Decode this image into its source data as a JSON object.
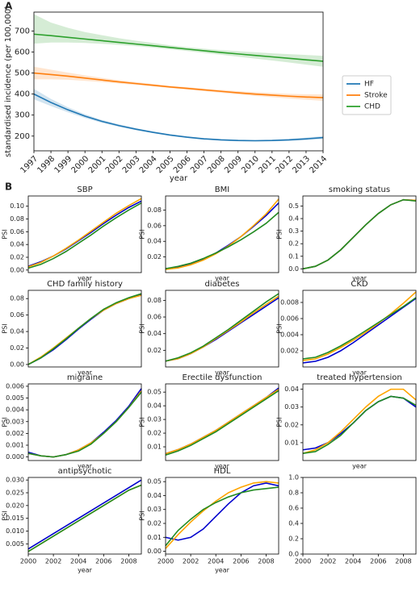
{
  "panel_labels": [
    "A",
    "B"
  ],
  "chart_data": [
    {
      "type": "line",
      "xlabel": "year",
      "ylabel": "standardised incidence (per 100,000)",
      "legend": "right",
      "grid": false,
      "x": [
        1997,
        1998,
        1999,
        2000,
        2001,
        2002,
        2003,
        2004,
        2005,
        2006,
        2007,
        2008,
        2009,
        2010,
        2011,
        2012,
        2013,
        2014
      ],
      "xlim": [
        1997,
        2014
      ],
      "xticks": [
        1997,
        1998,
        1999,
        2000,
        2001,
        2002,
        2003,
        2004,
        2005,
        2006,
        2007,
        2008,
        2009,
        2010,
        2011,
        2012,
        2013,
        2014
      ],
      "ylim": [
        130,
        790
      ],
      "yticks": [
        200,
        300,
        400,
        500,
        600,
        700
      ],
      "series": [
        {
          "name": "HF",
          "color": "#1f77b4",
          "values": [
            400,
            360,
            325,
            295,
            270,
            250,
            233,
            218,
            205,
            195,
            187,
            182,
            179,
            178,
            179,
            182,
            187,
            193
          ],
          "lower": [
            375,
            343,
            313,
            286,
            263,
            244,
            228,
            214,
            201,
            191,
            183,
            178,
            175,
            174,
            175,
            177,
            181,
            186
          ],
          "upper": [
            425,
            377,
            337,
            304,
            277,
            256,
            238,
            222,
            209,
            199,
            191,
            186,
            183,
            182,
            183,
            187,
            193,
            200
          ]
        },
        {
          "name": "Stroke",
          "color": "#ff7f0e",
          "values": [
            500,
            493,
            485,
            476,
            467,
            458,
            450,
            442,
            434,
            427,
            420,
            413,
            406,
            400,
            395,
            390,
            386,
            383
          ],
          "lower": [
            470,
            470,
            468,
            463,
            457,
            450,
            443,
            436,
            429,
            421,
            414,
            406,
            398,
            391,
            385,
            379,
            373,
            368
          ],
          "upper": [
            530,
            516,
            502,
            489,
            477,
            466,
            457,
            448,
            439,
            433,
            426,
            420,
            414,
            409,
            405,
            401,
            399,
            398
          ]
        },
        {
          "name": "CHD",
          "color": "#2ca02c",
          "values": [
            685,
            678,
            670,
            662,
            654,
            646,
            638,
            630,
            622,
            614,
            606,
            598,
            591,
            584,
            577,
            570,
            563,
            556
          ],
          "lower": [
            640,
            645,
            645,
            643,
            639,
            634,
            628,
            621,
            613,
            605,
            596,
            587,
            578,
            569,
            560,
            550,
            540,
            530
          ],
          "upper": [
            780,
            740,
            715,
            695,
            680,
            666,
            654,
            643,
            632,
            623,
            616,
            609,
            604,
            599,
            594,
            590,
            586,
            582
          ]
        }
      ]
    },
    {
      "type": "line",
      "title": "SBP",
      "xlabel": "year",
      "ylabel": "PSI",
      "x": [
        2000,
        2001,
        2002,
        2003,
        2004,
        2005,
        2006,
        2007,
        2008,
        2009
      ],
      "xlim": [
        2000,
        2009
      ],
      "ylim": [
        -0.004,
        0.116
      ],
      "yticks": [
        {
          "value": 0,
          "label": "0.00"
        },
        0.02,
        0.04,
        0.06,
        0.08,
        {
          "value": 0.1,
          "label": "0.10"
        }
      ],
      "series": [
        {
          "color": "#0000cd",
          "values": [
            0.006,
            0.013,
            0.022,
            0.033,
            0.046,
            0.059,
            0.073,
            0.086,
            0.098,
            0.108
          ]
        },
        {
          "color": "#ffa500",
          "values": [
            0.005,
            0.012,
            0.022,
            0.034,
            0.047,
            0.061,
            0.075,
            0.089,
            0.101,
            0.112
          ]
        },
        {
          "color": "#228b22",
          "values": [
            0.003,
            0.009,
            0.018,
            0.029,
            0.042,
            0.055,
            0.069,
            0.082,
            0.094,
            0.105
          ]
        }
      ]
    },
    {
      "type": "line",
      "title": "BMI",
      "xlabel": "year",
      "ylabel": "PSI",
      "x": [
        2000,
        2001,
        2002,
        2003,
        2004,
        2005,
        2006,
        2007,
        2008,
        2009
      ],
      "xlim": [
        2000,
        2009
      ],
      "ylim": [
        0,
        0.098
      ],
      "yticks": [
        0.02,
        0.04,
        0.06,
        0.08
      ],
      "series": [
        {
          "color": "#0000cd",
          "values": [
            0.005,
            0.007,
            0.011,
            0.017,
            0.025,
            0.035,
            0.046,
            0.059,
            0.073,
            0.089
          ]
        },
        {
          "color": "#ffa500",
          "values": [
            0.004,
            0.006,
            0.01,
            0.016,
            0.024,
            0.034,
            0.046,
            0.06,
            0.075,
            0.094
          ]
        },
        {
          "color": "#228b22",
          "values": [
            0.005,
            0.008,
            0.012,
            0.018,
            0.025,
            0.033,
            0.042,
            0.052,
            0.063,
            0.077
          ]
        }
      ]
    },
    {
      "type": "line",
      "title": "smoking status",
      "xlabel": "year",
      "ylabel": "PSI",
      "x": [
        2000,
        2001,
        2002,
        2003,
        2004,
        2005,
        2006,
        2007,
        2008,
        2009
      ],
      "xlim": [
        2000,
        2009
      ],
      "ylim": [
        -0.03,
        0.58
      ],
      "yticks": [
        {
          "value": 0,
          "label": "0.0"
        },
        0.1,
        0.2,
        0.3,
        0.4,
        0.5
      ],
      "series": [
        {
          "color": "#0000cd",
          "values": [
            0,
            0.02,
            0.07,
            0.15,
            0.25,
            0.35,
            0.44,
            0.51,
            0.55,
            0.545
          ]
        },
        {
          "color": "#ffa500",
          "values": [
            0,
            0.02,
            0.07,
            0.15,
            0.25,
            0.35,
            0.44,
            0.51,
            0.55,
            0.545
          ]
        },
        {
          "color": "#228b22",
          "values": [
            0,
            0.02,
            0.07,
            0.15,
            0.25,
            0.35,
            0.44,
            0.51,
            0.55,
            0.54
          ]
        }
      ]
    },
    {
      "type": "line",
      "title": "CHD family history",
      "xlabel": "year",
      "ylabel": "PSI",
      "x": [
        2000,
        2001,
        2002,
        2003,
        2004,
        2005,
        2006,
        2007,
        2008,
        2009
      ],
      "xlim": [
        2000,
        2009
      ],
      "ylim": [
        -0.003,
        0.09
      ],
      "yticks": [
        {
          "value": 0,
          "label": "0.00"
        },
        0.02,
        0.04,
        0.06,
        0.08
      ],
      "series": [
        {
          "color": "#0000cd",
          "values": [
            0,
            0.008,
            0.018,
            0.03,
            0.043,
            0.055,
            0.066,
            0.074,
            0.08,
            0.085
          ]
        },
        {
          "color": "#ffa500",
          "values": [
            0,
            0.009,
            0.02,
            0.032,
            0.044,
            0.056,
            0.066,
            0.074,
            0.08,
            0.084
          ]
        },
        {
          "color": "#228b22",
          "values": [
            0,
            0.008,
            0.019,
            0.031,
            0.044,
            0.056,
            0.067,
            0.075,
            0.081,
            0.086
          ]
        }
      ]
    },
    {
      "type": "line",
      "title": "diabetes",
      "xlabel": "year",
      "ylabel": "PSI",
      "x": [
        2000,
        2001,
        2002,
        2003,
        2004,
        2005,
        2006,
        2007,
        2008,
        2009
      ],
      "xlim": [
        2000,
        2009
      ],
      "ylim": [
        0,
        0.092
      ],
      "yticks": [
        0.02,
        0.04,
        0.06,
        0.08
      ],
      "series": [
        {
          "color": "#0000cd",
          "values": [
            0.007,
            0.01,
            0.016,
            0.024,
            0.033,
            0.043,
            0.053,
            0.063,
            0.073,
            0.083
          ]
        },
        {
          "color": "#ffa500",
          "values": [
            0.007,
            0.01,
            0.016,
            0.024,
            0.034,
            0.044,
            0.054,
            0.065,
            0.075,
            0.085
          ]
        },
        {
          "color": "#228b22",
          "values": [
            0.007,
            0.011,
            0.017,
            0.025,
            0.035,
            0.045,
            0.056,
            0.067,
            0.078,
            0.088
          ]
        }
      ]
    },
    {
      "type": "line",
      "title": "CKD",
      "xlabel": "year",
      "ylabel": "PSI",
      "x": [
        2000,
        2001,
        2002,
        2003,
        2004,
        2005,
        2006,
        2007,
        2008,
        2009
      ],
      "xlim": [
        2000,
        2009
      ],
      "ylim": [
        0,
        0.0095
      ],
      "yticks": [
        0.002,
        0.004,
        0.006,
        0.008
      ],
      "series": [
        {
          "color": "#0000cd",
          "values": [
            0.0005,
            0.0007,
            0.0012,
            0.002,
            0.003,
            0.0041,
            0.0052,
            0.0063,
            0.0074,
            0.0085
          ]
        },
        {
          "color": "#ffa500",
          "values": [
            0.0008,
            0.001,
            0.0016,
            0.0024,
            0.0033,
            0.0043,
            0.0054,
            0.0066,
            0.0079,
            0.0093
          ]
        },
        {
          "color": "#228b22",
          "values": [
            0.001,
            0.0012,
            0.0018,
            0.0026,
            0.0035,
            0.0045,
            0.0055,
            0.0065,
            0.0075,
            0.0086
          ]
        }
      ]
    },
    {
      "type": "line",
      "title": "migraine",
      "xlabel": "year",
      "ylabel": "PSI",
      "x": [
        2000,
        2001,
        2002,
        2003,
        2004,
        2005,
        2006,
        2007,
        2008,
        2009
      ],
      "xlim": [
        2000,
        2009
      ],
      "ylim": [
        -0.0003,
        0.0062
      ],
      "yticks": [
        {
          "value": 0,
          "label": "0.000"
        },
        0.001,
        0.002,
        0.003,
        0.004,
        0.005,
        0.006
      ],
      "series": [
        {
          "color": "#0000cd",
          "values": [
            0.0004,
            0.0001,
            0,
            0.0002,
            0.0006,
            0.0012,
            0.0021,
            0.0031,
            0.0043,
            0.0058
          ]
        },
        {
          "color": "#ffa500",
          "values": [
            0.0003,
            0.0001,
            0,
            0.0002,
            0.0006,
            0.0012,
            0.002,
            0.003,
            0.0042,
            0.0056
          ]
        },
        {
          "color": "#228b22",
          "values": [
            0.0003,
            0.0001,
            0,
            0.0002,
            0.0005,
            0.0011,
            0.002,
            0.003,
            0.0042,
            0.0055
          ]
        }
      ]
    },
    {
      "type": "line",
      "title": "Erectile dysfunction",
      "xlabel": "year",
      "ylabel": "PSI",
      "x": [
        2000,
        2001,
        2002,
        2003,
        2004,
        2005,
        2006,
        2007,
        2008,
        2009
      ],
      "xlim": [
        2000,
        2009
      ],
      "ylim": [
        0,
        0.056
      ],
      "yticks": [
        0.01,
        0.02,
        0.03,
        0.04,
        0.05
      ],
      "series": [
        {
          "color": "#0000cd",
          "values": [
            0.005,
            0.008,
            0.012,
            0.017,
            0.022,
            0.028,
            0.034,
            0.04,
            0.046,
            0.053
          ]
        },
        {
          "color": "#ffa500",
          "values": [
            0.005,
            0.008,
            0.012,
            0.017,
            0.022,
            0.028,
            0.034,
            0.04,
            0.046,
            0.052
          ]
        },
        {
          "color": "#228b22",
          "values": [
            0.004,
            0.007,
            0.011,
            0.016,
            0.021,
            0.027,
            0.033,
            0.039,
            0.045,
            0.051
          ]
        }
      ]
    },
    {
      "type": "line",
      "title": "treated hypertension",
      "xlabel": "year",
      "ylabel": "PSI",
      "x": [
        2000,
        2001,
        2002,
        2003,
        2004,
        2005,
        2006,
        2007,
        2008,
        2009
      ],
      "xlim": [
        2000,
        2009
      ],
      "ylim": [
        0,
        0.043
      ],
      "yticks": [
        0.01,
        0.02,
        0.03,
        0.04
      ],
      "series": [
        {
          "color": "#0000cd",
          "values": [
            0.006,
            0.007,
            0.01,
            0.015,
            0.021,
            0.028,
            0.033,
            0.036,
            0.035,
            0.03
          ]
        },
        {
          "color": "#ffa500",
          "values": [
            0.004,
            0.006,
            0.01,
            0.016,
            0.023,
            0.03,
            0.036,
            0.04,
            0.04,
            0.034
          ]
        },
        {
          "color": "#228b22",
          "values": [
            0.004,
            0.005,
            0.009,
            0.014,
            0.021,
            0.028,
            0.033,
            0.036,
            0.035,
            0.031
          ]
        }
      ]
    },
    {
      "type": "line",
      "title": "antipsychotic",
      "xlabel": "year",
      "ylabel": "PSI",
      "x": [
        2000,
        2001,
        2002,
        2003,
        2004,
        2005,
        2006,
        2007,
        2008,
        2009
      ],
      "xlim": [
        2000,
        2009
      ],
      "xticks": [
        2000,
        2002,
        2004,
        2006,
        2008
      ],
      "ylim": [
        0.001,
        0.031
      ],
      "yticks": [
        0.005,
        {
          "value": 0.01,
          "label": "0.010"
        },
        0.015,
        {
          "value": 0.02,
          "label": "0.020"
        },
        0.025,
        {
          "value": 0.03,
          "label": "0.030"
        }
      ],
      "series": [
        {
          "color": "#0000cd",
          "values": [
            0.003,
            0.006,
            0.009,
            0.012,
            0.015,
            0.018,
            0.021,
            0.024,
            0.027,
            0.03
          ]
        },
        {
          "color": "#ffa500",
          "values": [
            0.002,
            0.005,
            0.008,
            0.011,
            0.014,
            0.017,
            0.02,
            0.023,
            0.026,
            0.028
          ]
        },
        {
          "color": "#228b22",
          "values": [
            0.002,
            0.005,
            0.008,
            0.011,
            0.014,
            0.017,
            0.02,
            0.023,
            0.026,
            0.028
          ]
        }
      ]
    },
    {
      "type": "line",
      "title": "HDL",
      "xlabel": "year",
      "ylabel": "PSI",
      "x": [
        2000,
        2001,
        2002,
        2003,
        2004,
        2005,
        2006,
        2007,
        2008,
        2009
      ],
      "xlim": [
        2000,
        2009
      ],
      "xticks": [
        2000,
        2002,
        2004,
        2006,
        2008
      ],
      "ylim": [
        -0.002,
        0.053
      ],
      "yticks": [
        {
          "value": 0,
          "label": "0.00"
        },
        0.01,
        0.02,
        0.03,
        0.04,
        0.05
      ],
      "series": [
        {
          "color": "#0000cd",
          "values": [
            0.01,
            0.008,
            0.01,
            0.016,
            0.025,
            0.034,
            0.042,
            0.047,
            0.049,
            0.047
          ]
        },
        {
          "color": "#ffa500",
          "values": [
            0.002,
            0.012,
            0.021,
            0.029,
            0.036,
            0.042,
            0.046,
            0.049,
            0.05,
            0.049
          ]
        },
        {
          "color": "#228b22",
          "values": [
            0.004,
            0.015,
            0.023,
            0.03,
            0.035,
            0.039,
            0.042,
            0.044,
            0.045,
            0.046
          ]
        }
      ]
    },
    {
      "type": "line",
      "xlim": [
        2000,
        2009
      ],
      "xticks": [
        2000,
        2002,
        2004,
        2006,
        2008
      ],
      "ylim": [
        0,
        1
      ],
      "yticks": [
        {
          "value": 0,
          "label": "0.0"
        },
        0.2,
        0.4,
        0.6,
        0.8,
        {
          "value": 1,
          "label": "1.0"
        }
      ],
      "series": []
    }
  ]
}
